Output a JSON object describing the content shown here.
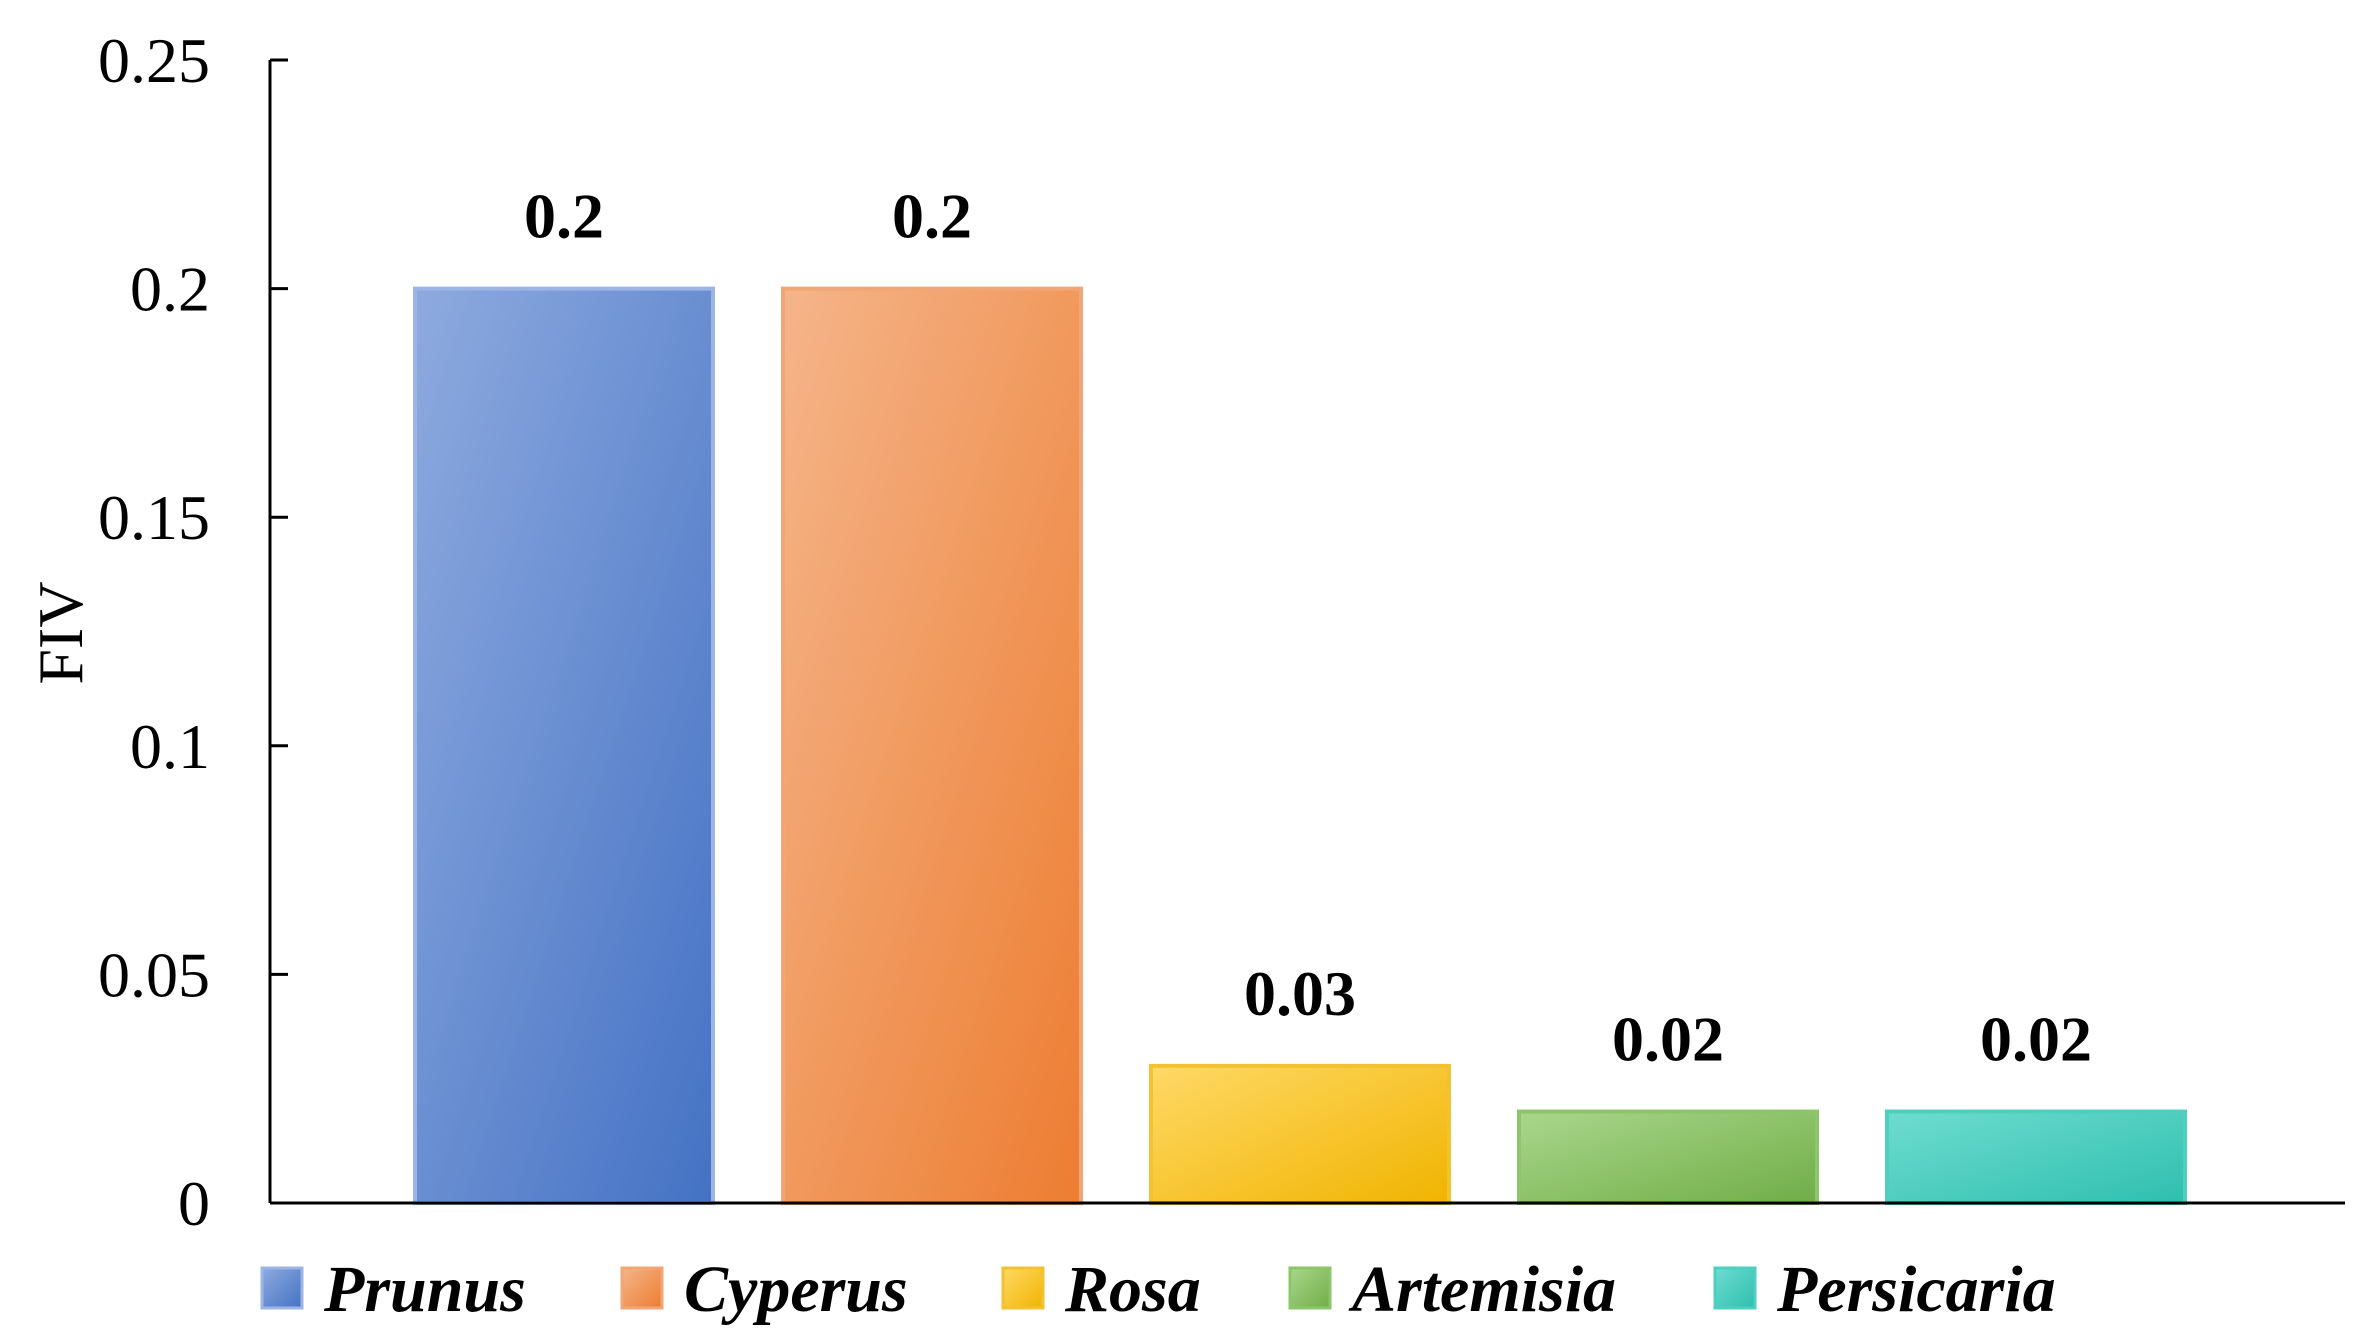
{
  "chart_data": {
    "type": "bar",
    "categories": [
      "Prunus",
      "Cyperus",
      "Rosa",
      "Artemisia",
      "Persicaria"
    ],
    "values": [
      0.2,
      0.2,
      0.03,
      0.02,
      0.02
    ],
    "data_labels": [
      "0.2",
      "0.2",
      "0.03",
      "0.02",
      "0.02"
    ],
    "ylabel": "FIV",
    "xlabel": "",
    "ylim": [
      0,
      0.25
    ],
    "yticks": [
      0,
      0.05,
      0.1,
      0.15,
      0.2,
      0.25
    ],
    "ytick_labels": [
      "0",
      "0.05",
      "0.1",
      "0.15",
      "0.2",
      "0.25"
    ],
    "grid": false,
    "legend_position": "bottom",
    "colors": [
      {
        "light": "#8eaadf",
        "dark": "#4472c4",
        "stroke": "#9db5e6"
      },
      {
        "light": "#f5b58a",
        "dark": "#ed7d31",
        "stroke": "#f2a676"
      },
      {
        "light": "#ffd966",
        "dark": "#f0b400",
        "stroke": "#f3c233"
      },
      {
        "light": "#a9d78b",
        "dark": "#70ad47",
        "stroke": "#8cc66a"
      },
      {
        "light": "#6fdcd0",
        "dark": "#2ebfae",
        "stroke": "#4fcfbf"
      }
    ]
  }
}
